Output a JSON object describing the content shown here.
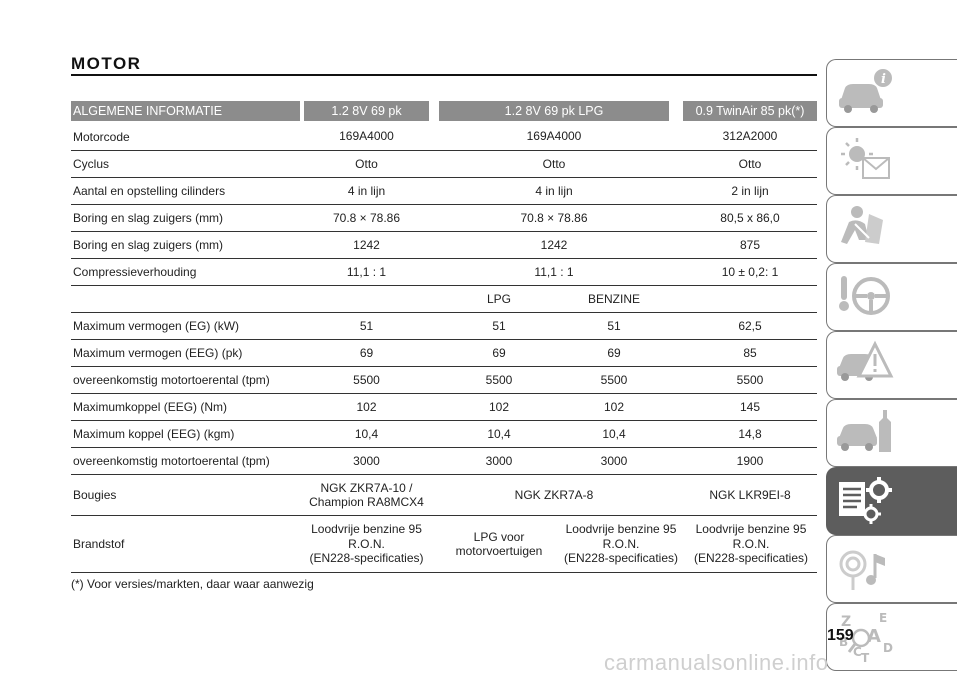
{
  "title": "MOTOR",
  "header": [
    "ALGEMENE INFORMATIE",
    "1.2 8V 69 pk",
    "1.2 8V 69 pk LPG",
    "0.9 TwinAir 85 pk(*)"
  ],
  "rows_a": [
    {
      "label": "Motorcode",
      "v1": "169A4000",
      "v2": "169A4000",
      "v3": "312A2000"
    },
    {
      "label": "Cyclus",
      "v1": "Otto",
      "v2": "Otto",
      "v3": "Otto"
    },
    {
      "label": "Aantal en opstelling cilinders",
      "v1": "4 in lijn",
      "v2": "4 in lijn",
      "v3": "2 in lijn"
    },
    {
      "label": "Boring en slag zuigers (mm)",
      "v1": "70.8 × 78.86",
      "v2": "70.8 × 78.86",
      "v3": "80,5 x 86,0"
    },
    {
      "label": "Boring en slag zuigers (mm)",
      "v1": "1242",
      "v2": "1242",
      "v3": "875"
    },
    {
      "label": "Compressieverhouding",
      "v1": "11,1 : 1",
      "v2": "11,1 : 1",
      "v3": "10 ± 0,2: 1"
    }
  ],
  "fuel_split": {
    "lpg": "LPG",
    "benzine": "BENZINE"
  },
  "rows_b": [
    {
      "label": "Maximum vermogen (EG) (kW)",
      "v1": "51",
      "v2": "51",
      "v3": "51",
      "v4": "62,5"
    },
    {
      "label": "Maximum vermogen (EEG) (pk)",
      "v1": "69",
      "v2": "69",
      "v3": "69",
      "v4": "85"
    },
    {
      "label": "overeenkomstig motortoerental (tpm)",
      "v1": "5500",
      "v2": "5500",
      "v3": "5500",
      "v4": "5500"
    },
    {
      "label": "Maximumkoppel (EEG) (Nm)",
      "v1": "102",
      "v2": "102",
      "v3": "102",
      "v4": "145"
    },
    {
      "label": "Maximum koppel (EEG) (kgm)",
      "v1": "10,4",
      "v2": "10,4",
      "v3": "10,4",
      "v4": "14,8"
    },
    {
      "label": "overeenkomstig motortoerental (tpm)",
      "v1": "3000",
      "v2": "3000",
      "v3": "3000",
      "v4": "1900"
    }
  ],
  "bougies": {
    "label": "Bougies",
    "v1_line1": "NGK ZKR7A-10 /",
    "v1_line2": "Champion RA8MCX4",
    "v2": "NGK ZKR7A-8",
    "v3": "NGK LKR9EI-8"
  },
  "brandstof": {
    "label": "Brandstof",
    "v1": [
      "Loodvrije benzine 95",
      "R.O.N.",
      "(EN228-specificaties)"
    ],
    "v2": [
      "LPG voor",
      "motorvoertuigen"
    ],
    "v3": [
      "Loodvrije benzine 95",
      "R.O.N.",
      "(EN228-specificaties)"
    ],
    "v4": [
      "Loodvrije benzine 95",
      "R.O.N.",
      "(EN228-specificaties)"
    ]
  },
  "footnote": "(*) Voor versies/markten, daar waar aanwezig",
  "page_number": "159",
  "watermark": "carmanualsonline.info",
  "sidebar": {
    "icons": [
      "car-info-icon",
      "warning-lights-icon",
      "safety-icon",
      "steering-icon",
      "emergency-icon",
      "maintenance-icon",
      "technical-data-icon",
      "multimedia-icon",
      "index-icon"
    ],
    "letters": [
      "Z",
      "E",
      "A",
      "B",
      "C",
      "D",
      "T"
    ],
    "active_index": 6
  },
  "colors": {
    "header_bg": "#8c8c8c",
    "active_tab": "#5d5d5d",
    "rule": "#333333"
  }
}
